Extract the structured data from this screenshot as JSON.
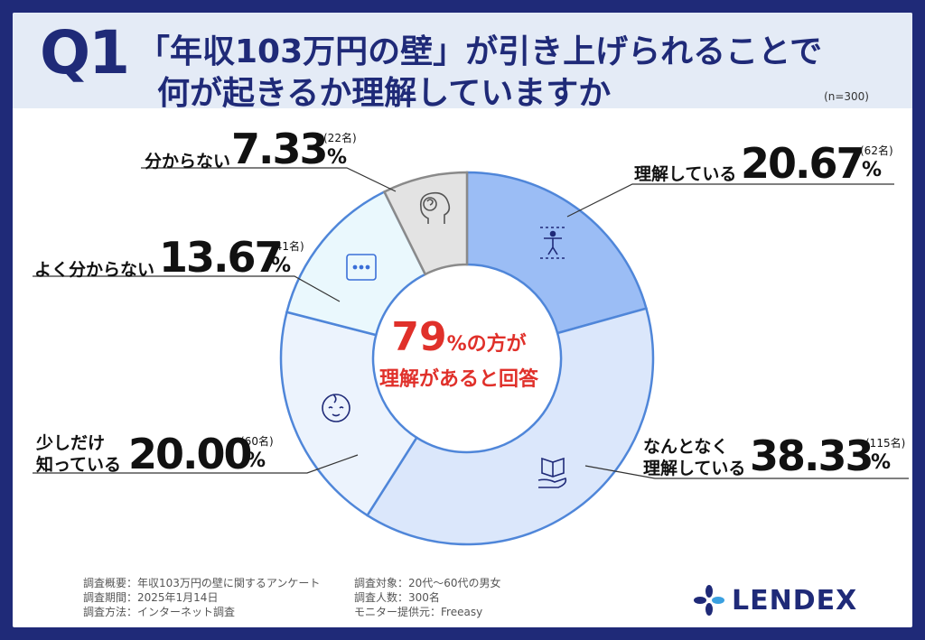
{
  "header": {
    "q": "Q1",
    "title_line1": "「年収103万円の壁」が引き上げられることで",
    "title_line2": "何が起きるか理解していますか",
    "sample": "(n=300)"
  },
  "center": {
    "number": "79",
    "unit": "%の方が",
    "sub": "理解があると回答"
  },
  "chart_data": {
    "type": "pie",
    "donut": true,
    "start": "top",
    "direction": "clockwise",
    "slices": [
      {
        "label": "理解している",
        "value": 20.67,
        "count": "(62名)",
        "color": "#9bbdf5",
        "icon": "accessibility-icon"
      },
      {
        "label": "なんとなく理解している",
        "value": 38.33,
        "count": "(115名)",
        "color": "#dbe7fb",
        "icon": "open-book-hand-icon"
      },
      {
        "label": "少しだけ知っている",
        "value": 20.0,
        "count": "(60名)",
        "color": "#ecf3fd",
        "icon": "baby-face-icon"
      },
      {
        "label": "よく分からない",
        "value": 13.67,
        "count": "(41名)",
        "color": "#eaf8fd",
        "icon": "chat-dots-icon"
      },
      {
        "label": "分からない",
        "value": 7.33,
        "count": "(22名)",
        "color": "#e3e3e3",
        "icon": "head-question-icon"
      }
    ],
    "value_texts": [
      "20.67",
      "38.33",
      "20.00",
      "13.67",
      "7.33"
    ],
    "percent_sign": "%"
  },
  "labels": {
    "s0_name": "理解している",
    "s1_name1": "なんとなく",
    "s1_name2": "理解している",
    "s2_name1": "少しだけ",
    "s2_name2": "知っている",
    "s3_name": "よく分からない",
    "s4_name": "分からない"
  },
  "footer": {
    "left1": "調査概要：年収103万円の壁に関するアンケート",
    "left2": "調査期間：2025年1月14日",
    "left3": "調査方法：インターネット調査",
    "right1": "調査対象：20代〜60代の男女",
    "right2": "調査人数：300名",
    "right3": "モニター提供元：Freeasy"
  },
  "logo": {
    "text": "LENDEX",
    "icon": "lendex-logo-icon"
  }
}
